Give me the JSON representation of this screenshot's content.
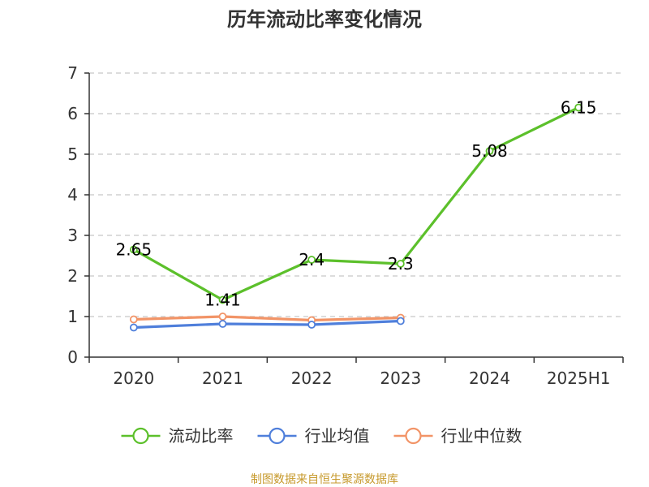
{
  "chart_data": {
    "type": "line",
    "title": "历年流动比率变化情况",
    "categories": [
      "2020",
      "2021",
      "2022",
      "2023",
      "2024",
      "2025H1"
    ],
    "ylim": [
      0,
      7
    ],
    "yticks": [
      "0",
      "1",
      "2",
      "3",
      "4",
      "5",
      "6",
      "7"
    ],
    "grid": true,
    "legend_position": "bottom",
    "series": [
      {
        "name": "流动比率",
        "color": "#5cc02b",
        "values": [
          2.65,
          1.41,
          2.4,
          2.3,
          5.08,
          6.15
        ],
        "labels": [
          "2.65",
          "1.41",
          "2.4",
          "2.3",
          "5.08",
          "6.15"
        ]
      },
      {
        "name": "行业均值",
        "color": "#4f7fdb",
        "values": [
          0.73,
          0.82,
          0.8,
          0.89,
          null,
          null
        ]
      },
      {
        "name": "行业中位数",
        "color": "#f29467",
        "values": [
          0.93,
          1.0,
          0.91,
          0.97,
          null,
          null
        ]
      }
    ],
    "footer": "制图数据来自恒生聚源数据库"
  }
}
